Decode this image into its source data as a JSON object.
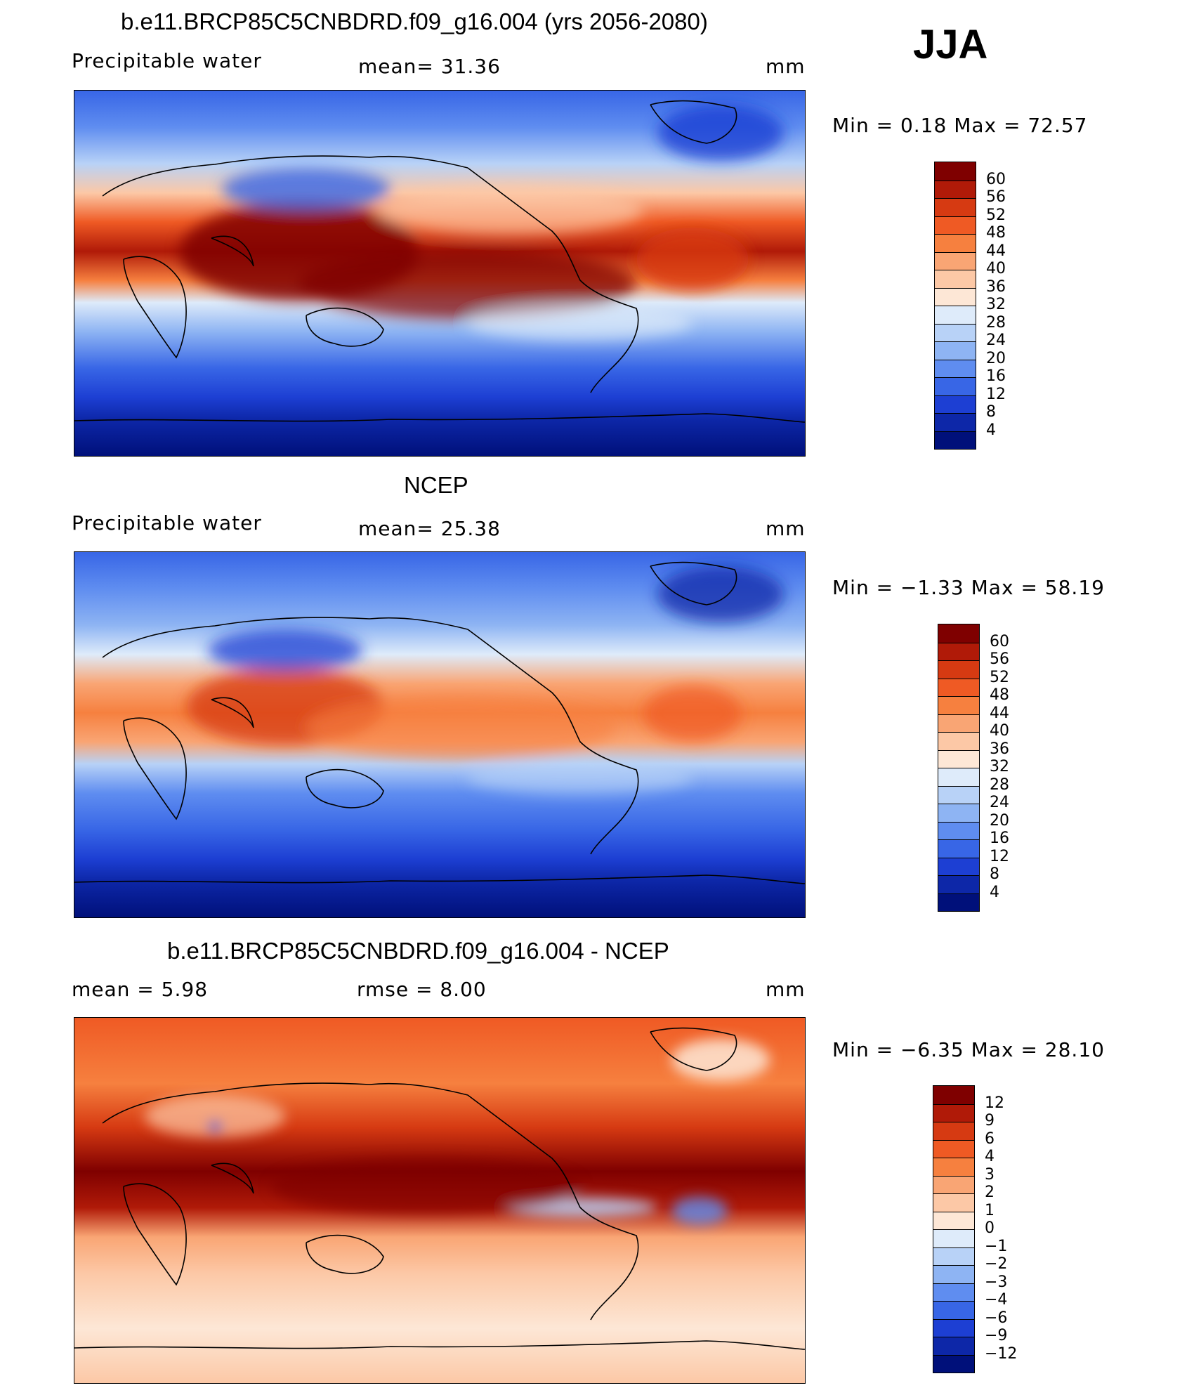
{
  "season": "JJA",
  "panels": [
    {
      "title": "b.e11.BRCP85C5CNBDRD.f09_g16.004 (yrs 2056-2080)",
      "left_label": "Precipitable  water",
      "center_label": "mean=   31.36",
      "units": "mm",
      "minmax": "Min  =     0.18  Max  =     72.57",
      "colorbar_ticks": [
        "60",
        "56",
        "52",
        "48",
        "44",
        "40",
        "36",
        "32",
        "28",
        "24",
        "20",
        "16",
        "12",
        "8",
        "4"
      ],
      "colors": [
        "#7f0000",
        "#b01a08",
        "#d63a12",
        "#ef5a24",
        "#f6803f",
        "#f9a574",
        "#fcc8a6",
        "#fde7d6",
        "#deebfa",
        "#b8d2f7",
        "#8eb4f3",
        "#5f8df0",
        "#3866e6",
        "#1d3fd3",
        "#0d27a8",
        "#00107a"
      ]
    },
    {
      "title": "NCEP",
      "left_label": "Precipitable  water",
      "center_label": "mean=   25.38",
      "units": "mm",
      "minmax": "Min  =   −1.33  Max  =     58.19",
      "colorbar_ticks": [
        "60",
        "56",
        "52",
        "48",
        "44",
        "40",
        "36",
        "32",
        "28",
        "24",
        "20",
        "16",
        "12",
        "8",
        "4"
      ],
      "colors": [
        "#7f0000",
        "#b01a08",
        "#d63a12",
        "#ef5a24",
        "#f6803f",
        "#f9a574",
        "#fcc8a6",
        "#fde7d6",
        "#deebfa",
        "#b8d2f7",
        "#8eb4f3",
        "#5f8df0",
        "#3866e6",
        "#1d3fd3",
        "#0d27a8",
        "#00107a"
      ]
    },
    {
      "title": "b.e11.BRCP85C5CNBDRD.f09_g16.004 - NCEP",
      "left_label": "mean  =      5.98",
      "center_label": "rmse  =      8.00",
      "units": "mm",
      "minmax": "Min  =   −6.35  Max  =     28.10",
      "colorbar_ticks": [
        "12",
        "9",
        "6",
        "4",
        "3",
        "2",
        "1",
        "0",
        "−1",
        "−2",
        "−3",
        "−4",
        "−6",
        "−9",
        "−12"
      ],
      "colors": [
        "#7f0000",
        "#b01a08",
        "#d63a12",
        "#ef5a24",
        "#f6803f",
        "#f9a574",
        "#fcc8a6",
        "#fde7d6",
        "#deebfa",
        "#b8d2f7",
        "#8eb4f3",
        "#5f8df0",
        "#3866e6",
        "#1d3fd3",
        "#0d27a8",
        "#00107a"
      ]
    }
  ]
}
